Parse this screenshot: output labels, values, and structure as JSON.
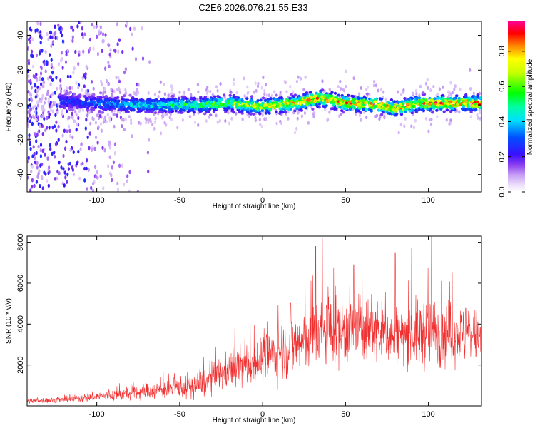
{
  "title": "C2E6.2026.076.21.55.E33",
  "chart_data": [
    {
      "type": "heatmap",
      "xlabel": "Height of straight line (km)",
      "ylabel": "Frequency (Hz)",
      "xlim": [
        -142,
        132
      ],
      "ylim": [
        -50,
        48
      ],
      "xticks": [
        -100,
        -50,
        0,
        50,
        100
      ],
      "yticks": [
        -40,
        -20,
        0,
        20,
        40
      ],
      "colorbar": {
        "label": "Normalized spectral amplitude",
        "range": [
          0,
          0.97
        ],
        "ticks": [
          0.0,
          0.2,
          0.4,
          0.6,
          0.8
        ],
        "colormap": "rainbow (white/violet → blue → cyan → green → yellow → red → magenta)"
      },
      "ridge_center_hz": [
        {
          "x": -120,
          "y": 2
        },
        {
          "x": -100,
          "y": 1
        },
        {
          "x": -80,
          "y": 0
        },
        {
          "x": -60,
          "y": 0
        },
        {
          "x": -40,
          "y": 0
        },
        {
          "x": -20,
          "y": 1
        },
        {
          "x": 0,
          "y": -1
        },
        {
          "x": 20,
          "y": 1
        },
        {
          "x": 35,
          "y": 4
        },
        {
          "x": 50,
          "y": 1
        },
        {
          "x": 70,
          "y": 0
        },
        {
          "x": 80,
          "y": -2
        },
        {
          "x": 95,
          "y": 1
        },
        {
          "x": 110,
          "y": 1
        },
        {
          "x": 130,
          "y": 1
        }
      ]
    },
    {
      "type": "line",
      "xlabel": "Height of straight line (km)",
      "ylabel": "SNR (10 * v/v)",
      "xlim": [
        -142,
        132
      ],
      "ylim": [
        0,
        8300
      ],
      "xticks": [
        -100,
        -50,
        0,
        50,
        100
      ],
      "yticks": [
        2000,
        4000,
        6000,
        8000
      ],
      "series_color": "#f03030",
      "envelope": [
        {
          "x": -140,
          "mean": 250,
          "spread": 150
        },
        {
          "x": -120,
          "mean": 300,
          "spread": 180
        },
        {
          "x": -100,
          "mean": 450,
          "spread": 300
        },
        {
          "x": -80,
          "mean": 600,
          "spread": 400
        },
        {
          "x": -60,
          "mean": 800,
          "spread": 600
        },
        {
          "x": -40,
          "mean": 1000,
          "spread": 800
        },
        {
          "x": -20,
          "mean": 1700,
          "spread": 1200
        },
        {
          "x": 0,
          "mean": 2300,
          "spread": 1500
        },
        {
          "x": 20,
          "mean": 3000,
          "spread": 2000
        },
        {
          "x": 40,
          "mean": 3700,
          "spread": 2300
        },
        {
          "x": 60,
          "mean": 3800,
          "spread": 2000
        },
        {
          "x": 80,
          "mean": 3400,
          "spread": 1800
        },
        {
          "x": 100,
          "mean": 3600,
          "spread": 2200
        },
        {
          "x": 120,
          "mean": 3500,
          "spread": 1800
        },
        {
          "x": 130,
          "mean": 3400,
          "spread": 1600
        }
      ],
      "peaks": [
        {
          "x": 32,
          "y": 7800
        },
        {
          "x": 36,
          "y": 8200
        },
        {
          "x": 80,
          "y": 7500
        },
        {
          "x": 90,
          "y": 7700
        },
        {
          "x": 102,
          "y": 8300
        },
        {
          "x": 108,
          "y": 6100
        },
        {
          "x": 55,
          "y": 6900
        },
        {
          "x": 17,
          "y": 5000
        }
      ]
    }
  ]
}
